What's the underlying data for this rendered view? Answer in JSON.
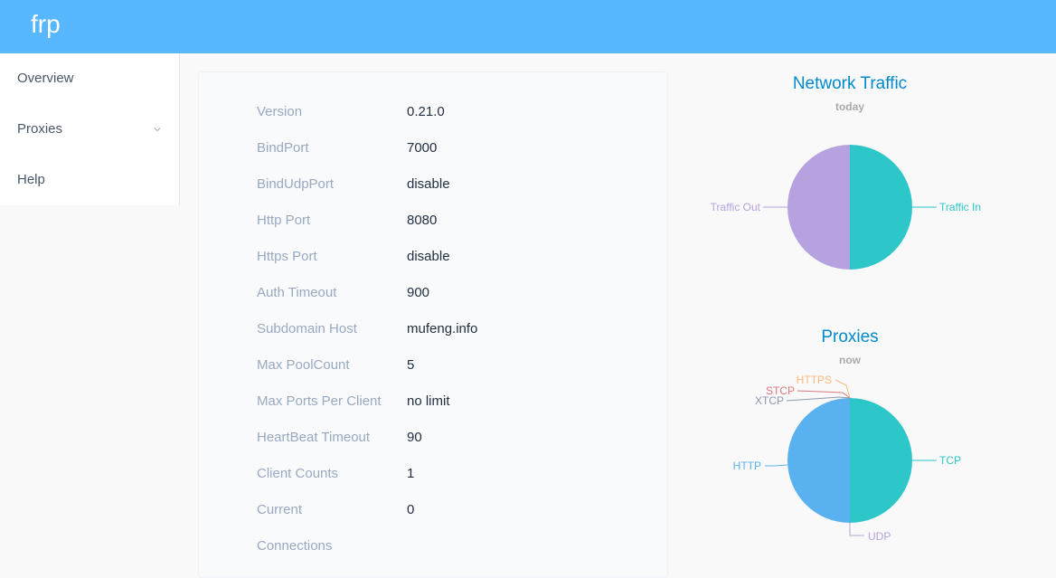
{
  "header": {
    "brand": "frp"
  },
  "sidebar": {
    "items": [
      {
        "label": "Overview",
        "has_submenu": false
      },
      {
        "label": "Proxies",
        "has_submenu": true
      },
      {
        "label": "Help",
        "has_submenu": false
      }
    ]
  },
  "info": [
    {
      "label": "Version",
      "value": "0.21.0"
    },
    {
      "label": "BindPort",
      "value": "7000"
    },
    {
      "label": "BindUdpPort",
      "value": "disable"
    },
    {
      "label": "Http Port",
      "value": "8080"
    },
    {
      "label": "Https Port",
      "value": "disable"
    },
    {
      "label": "Auth Timeout",
      "value": "900"
    },
    {
      "label": "Subdomain Host",
      "value": "mufeng.info"
    },
    {
      "label": "Max PoolCount",
      "value": "5"
    },
    {
      "label": "Max Ports Per Client",
      "value": "no limit"
    },
    {
      "label": "HeartBeat Timeout",
      "value": "90"
    },
    {
      "label": "Client Counts",
      "value": "1"
    },
    {
      "label": "Current",
      "value": "0"
    },
    {
      "label": "Connections",
      "value": ""
    }
  ],
  "chart_data": [
    {
      "type": "pie",
      "title": "Network Traffic",
      "subtitle": "today",
      "categories": [
        "Traffic In",
        "Traffic Out"
      ],
      "values": [
        50,
        50
      ],
      "colors": [
        "#2ec7c9",
        "#b6a2de"
      ]
    },
    {
      "type": "pie",
      "title": "Proxies",
      "subtitle": "now",
      "categories": [
        "TCP",
        "UDP",
        "HTTP",
        "HTTPS",
        "STCP",
        "XTCP"
      ],
      "values": [
        1,
        0,
        1,
        0,
        0,
        0
      ],
      "colors": [
        "#2ec7c9",
        "#b6a2de",
        "#5ab1ef",
        "#ffb980",
        "#d87a80",
        "#8d98b3"
      ]
    }
  ]
}
